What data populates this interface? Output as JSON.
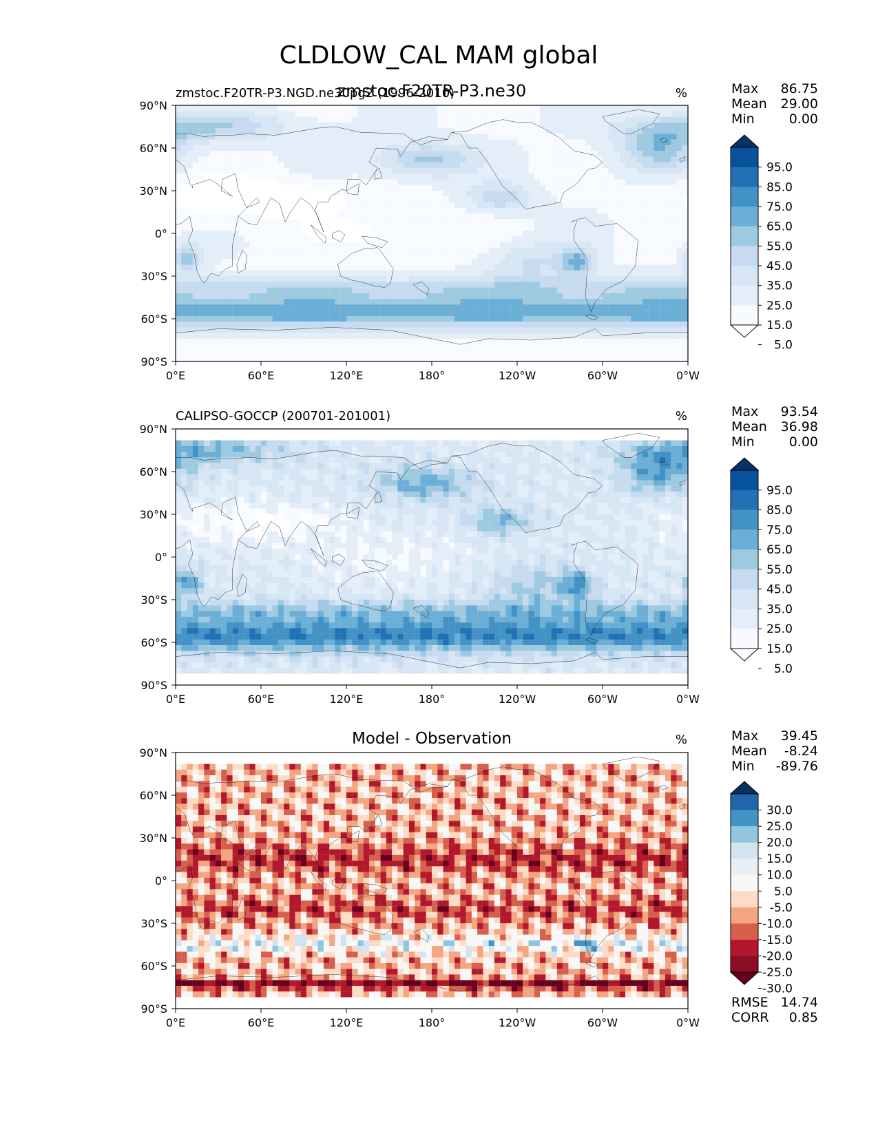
{
  "figure_title": "CLDLOW_CAL MAM global",
  "units": "%",
  "x_tick_labels": [
    "0°E",
    "60°E",
    "120°E",
    "180°",
    "120°W",
    "60°W",
    "0°W"
  ],
  "y_tick_labels": [
    "90°N",
    "60°N",
    "30°N",
    "0°",
    "30°S",
    "60°S",
    "90°S"
  ],
  "panels": [
    {
      "id": "model",
      "left_title": "zmstoc.F20TR-P3.NGD.ne30pg2 (1996-2010)",
      "center_title": "zmstoc.F20TR-P3.ne30",
      "stats": [
        {
          "label": "Max",
          "value": "86.75"
        },
        {
          "label": "Mean",
          "value": "29.00"
        },
        {
          "label": "Min",
          "value": "0.00"
        }
      ],
      "colorbar": {
        "labels": [
          "95.0",
          "85.0",
          "75.0",
          "65.0",
          "55.0",
          "45.0",
          "35.0",
          "25.0",
          "15.0",
          "5.0"
        ],
        "colors": [
          "#08306b",
          "#08519c",
          "#2171b5",
          "#4292c6",
          "#6baed6",
          "#9ecae1",
          "#c6dbef",
          "#d6e6f4",
          "#e4eef9",
          "#f7fbff",
          "#ffffff"
        ]
      },
      "field_palette": [
        "#ffffff",
        "#f7fbff",
        "#e4eef9",
        "#d6e6f4",
        "#c6dbef",
        "#9ecae1",
        "#6baed6",
        "#4292c6",
        "#2171b5",
        "#08519c",
        "#08306b"
      ]
    },
    {
      "id": "obs",
      "left_title": "CALIPSO-GOCCP (200701-201001)",
      "center_title": "",
      "stats": [
        {
          "label": "Max",
          "value": "93.54"
        },
        {
          "label": "Mean",
          "value": "36.98"
        },
        {
          "label": "Min",
          "value": "0.00"
        }
      ],
      "colorbar": {
        "labels": [
          "95.0",
          "85.0",
          "75.0",
          "65.0",
          "55.0",
          "45.0",
          "35.0",
          "25.0",
          "15.0",
          "5.0"
        ],
        "colors": [
          "#08306b",
          "#08519c",
          "#2171b5",
          "#4292c6",
          "#6baed6",
          "#9ecae1",
          "#c6dbef",
          "#d6e6f4",
          "#e4eef9",
          "#f7fbff",
          "#ffffff"
        ]
      },
      "field_palette": [
        "#ffffff",
        "#f7fbff",
        "#e4eef9",
        "#d6e6f4",
        "#c6dbef",
        "#9ecae1",
        "#6baed6",
        "#4292c6",
        "#2171b5",
        "#08519c",
        "#08306b"
      ]
    },
    {
      "id": "diff",
      "left_title": "",
      "center_title": "Model - Observation",
      "stats": [
        {
          "label": "Max",
          "value": "39.45"
        },
        {
          "label": "Mean",
          "value": "-8.24"
        },
        {
          "label": "Min",
          "value": "-89.76"
        }
      ],
      "colorbar": {
        "labels": [
          "30.0",
          "25.0",
          "20.0",
          "15.0",
          "10.0",
          "5.0",
          "-5.0",
          "-10.0",
          "-15.0",
          "-20.0",
          "-25.0",
          "-30.0"
        ],
        "colors": [
          "#053061",
          "#2166ac",
          "#4393c3",
          "#92c5de",
          "#d1e5f0",
          "#e8f0f5",
          "#f7f7f7",
          "#fddbc7",
          "#f4a582",
          "#d6604d",
          "#b2182b",
          "#8c0d25",
          "#67001f"
        ]
      },
      "field_palette": [
        "#67001f",
        "#b2182b",
        "#d6604d",
        "#f4a582",
        "#fddbc7",
        "#f7f7f7",
        "#d1e5f0",
        "#92c5de",
        "#4393c3",
        "#2166ac",
        "#053061"
      ],
      "bottom_stats": [
        {
          "label": "RMSE",
          "value": "14.74"
        },
        {
          "label": "CORR",
          "value": "0.85"
        }
      ]
    }
  ]
}
